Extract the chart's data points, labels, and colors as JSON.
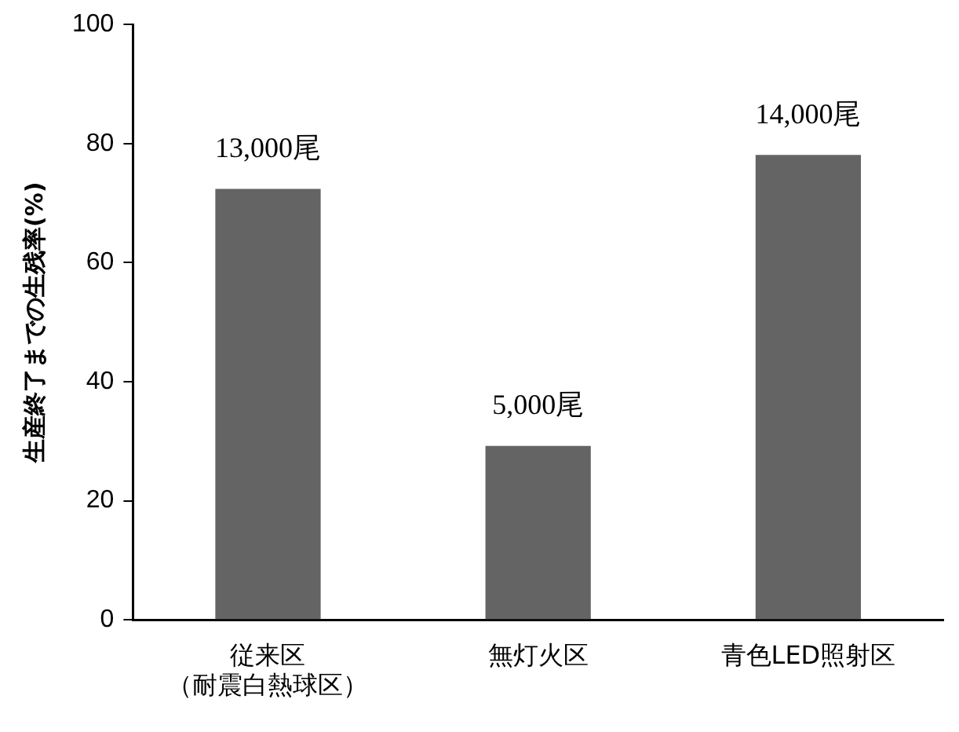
{
  "chart_data": {
    "type": "bar",
    "ylabel": "生産終了までの生残率(%)",
    "categories": [
      "従来区（耐震白熱球区）",
      "無灯火区",
      "青色LED照射区"
    ],
    "values": [
      72.4,
      29.2,
      78.1
    ],
    "color": "#646464",
    "annotations": [
      {
        "text": "13,000尾",
        "x": "従来区（耐震白熱球区）",
        "y": 72.4
      },
      {
        "text": "5,000尾",
        "x": "無灯火区",
        "y": 29.2
      },
      {
        "text": "14,000尾",
        "x": "青色LED照射区",
        "y": 78.1
      }
    ],
    "ylim": [
      0,
      100
    ],
    "yticks": [
      0,
      20,
      40,
      60,
      80,
      100
    ],
    "grid": false,
    "legend": false
  }
}
